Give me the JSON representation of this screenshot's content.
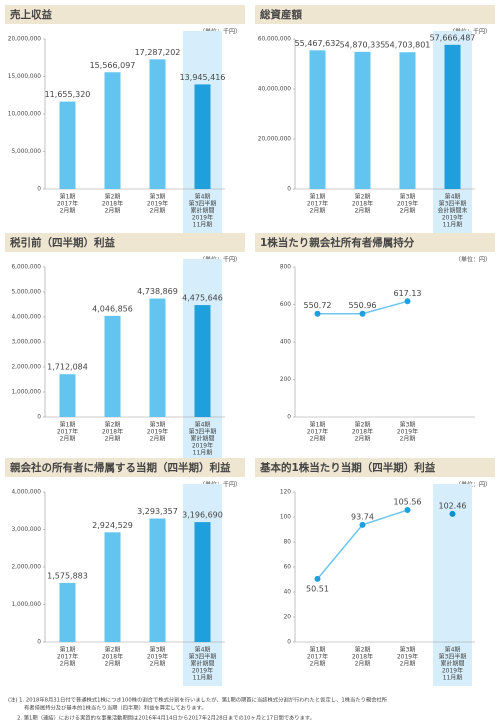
{
  "chart_data": [
    {
      "type": "bar",
      "title": "売上収益",
      "unit": "（単位：千円）",
      "categories": [
        [
          "第1期",
          "2017年",
          "2月期"
        ],
        [
          "第2期",
          "2018年",
          "2月期"
        ],
        [
          "第3期",
          "2019年",
          "2月期"
        ],
        [
          "第4期",
          "第3四半期",
          "累計期間",
          "2019年",
          "11月期"
        ]
      ],
      "values": [
        11655320,
        15566097,
        17287202,
        13945416
      ],
      "value_labels": [
        "11,655,320",
        "15,566,097",
        "17,287,202",
        "13,945,416"
      ],
      "color": "#62c4ef",
      "highlight_color": "#1f9fdc",
      "highlight": 3,
      "ylim": [
        0,
        20000000
      ],
      "yticks": [
        0,
        {
          "value": 5000000,
          "label": "5,000,000"
        },
        {
          "value": 10000000,
          "label": "10,000,000"
        },
        {
          "value": 15000000,
          "label": "15,000,000"
        },
        {
          "value": 20000000,
          "label": "20,000,000"
        }
      ]
    },
    {
      "type": "bar",
      "title": "総資産額",
      "unit": "（単位：千円）",
      "categories": [
        [
          "第1期",
          "2017年",
          "2月期"
        ],
        [
          "第2期",
          "2018年",
          "2月期"
        ],
        [
          "第3期",
          "2019年",
          "2月期"
        ],
        [
          "第4期",
          "第3四半期",
          "会計期間末",
          "2019年",
          "11月期"
        ]
      ],
      "values": [
        55467632,
        54870335,
        54703801,
        57666487
      ],
      "value_labels": [
        "55,467,632",
        "54,870,335",
        "54,703,801",
        "57,666,487"
      ],
      "color": "#62c4ef",
      "highlight_color": "#1f9fdc",
      "highlight": 3,
      "ylim": [
        0,
        60000000
      ],
      "yticks": [
        0,
        {
          "value": 20000000,
          "label": "20,000,000"
        },
        {
          "value": 40000000,
          "label": "40,000,000"
        },
        {
          "value": 60000000,
          "label": "60,000,000"
        }
      ]
    },
    {
      "type": "bar",
      "title": "税引前（四半期）利益",
      "unit": "（単位：千円）",
      "categories": [
        [
          "第1期",
          "2017年",
          "2月期"
        ],
        [
          "第2期",
          "2018年",
          "2月期"
        ],
        [
          "第3期",
          "2019年",
          "2月期"
        ],
        [
          "第4期",
          "第3四半期",
          "累計期間",
          "2019年",
          "11月期"
        ]
      ],
      "values": [
        1712084,
        4046856,
        4738869,
        4475646
      ],
      "value_labels": [
        "1,712,084",
        "4,046,856",
        "4,738,869",
        "4,475,646"
      ],
      "color": "#62c4ef",
      "highlight_color": "#1f9fdc",
      "highlight": 3,
      "ylim": [
        0,
        6000000
      ],
      "yticks": [
        0,
        {
          "value": 1000000,
          "label": "1,000,000"
        },
        {
          "value": 2000000,
          "label": "2,000,000"
        },
        {
          "value": 3000000,
          "label": "3,000,000"
        },
        {
          "value": 4000000,
          "label": "4,000,000"
        },
        {
          "value": 5000000,
          "label": "5,000,000"
        },
        {
          "value": 6000000,
          "label": "6,000,000"
        }
      ]
    },
    {
      "type": "line",
      "title": "1株当たり親会社所有者帰属持分",
      "unit": "（単位：円）",
      "categories": [
        [
          "第1期",
          "2017年",
          "2月期"
        ],
        [
          "第2期",
          "2018年",
          "2月期"
        ],
        [
          "第3期",
          "2019年",
          "2月期"
        ]
      ],
      "series": [
        {
          "color": "#6cc6ee",
          "marker_color": "#1f9fdc",
          "values": [
            550.72,
            550.96,
            617.13
          ]
        }
      ],
      "ylim": [
        0,
        800
      ],
      "yticks": [
        0,
        200,
        400,
        600,
        800
      ]
    },
    {
      "type": "bar",
      "title": "親会社の所有者に帰属する当期（四半期）利益",
      "unit": "（単位：千円）",
      "categories": [
        [
          "第1期",
          "2017年",
          "2月期"
        ],
        [
          "第2期",
          "2018年",
          "2月期"
        ],
        [
          "第3期",
          "2019年",
          "2月期"
        ],
        [
          "第4期",
          "第3四半期",
          "累計期間",
          "2019年",
          "11月期"
        ]
      ],
      "values": [
        1575883,
        2924529,
        3293357,
        3196690
      ],
      "value_labels": [
        "1,575,883",
        "2,924,529",
        "3,293,357",
        "3,196,690"
      ],
      "color": "#62c4ef",
      "highlight_color": "#1f9fdc",
      "highlight": 3,
      "ylim": [
        0,
        4000000
      ],
      "yticks": [
        0,
        {
          "value": 1000000,
          "label": "1,000,000"
        },
        {
          "value": 2000000,
          "label": "2,000,000"
        },
        {
          "value": 3000000,
          "label": "3,000,000"
        },
        {
          "value": 4000000,
          "label": "4,000,000"
        }
      ]
    },
    {
      "type": "line",
      "title": "基本的1株当たり当期（四半期）利益",
      "unit": "（単位：円）",
      "categories": [
        [
          "第1期",
          "2017年",
          "2月期"
        ],
        [
          "第2期",
          "2018年",
          "2月期"
        ],
        [
          "第3期",
          "2019年",
          "2月期"
        ],
        [
          "第4期",
          "第3四半期",
          "累計期間",
          "2019年",
          "11月期"
        ]
      ],
      "series": [
        {
          "color": "#6cc6ee",
          "marker_color": "#1f9fdc",
          "values": [
            50.51,
            93.74,
            105.56,
            null
          ]
        },
        {
          "color": "#6cc6ee",
          "marker_color": "#0c8fd3",
          "values": [
            null,
            null,
            null,
            102.46
          ]
        }
      ],
      "highlight": 3,
      "ylim": [
        0,
        120
      ],
      "yticks": [
        0,
        20,
        40,
        60,
        80,
        100,
        120
      ]
    }
  ],
  "notes": [
    "(注) 1. 2018年8月31日付で普通株式1株につき100株の割合で株式分割を行いましたが、第1期の期首に当該株式分割が行われたと仮定し、1株当たり親会社所",
    "有者帰属持分及び基本的1株当たり当期（四半期）利益を算定しております。",
    "2. 第1期（連結）における実質的な事業活動期間は2016年4月14日から2017年2月28日までの10ヶ月と17日間であります。"
  ]
}
